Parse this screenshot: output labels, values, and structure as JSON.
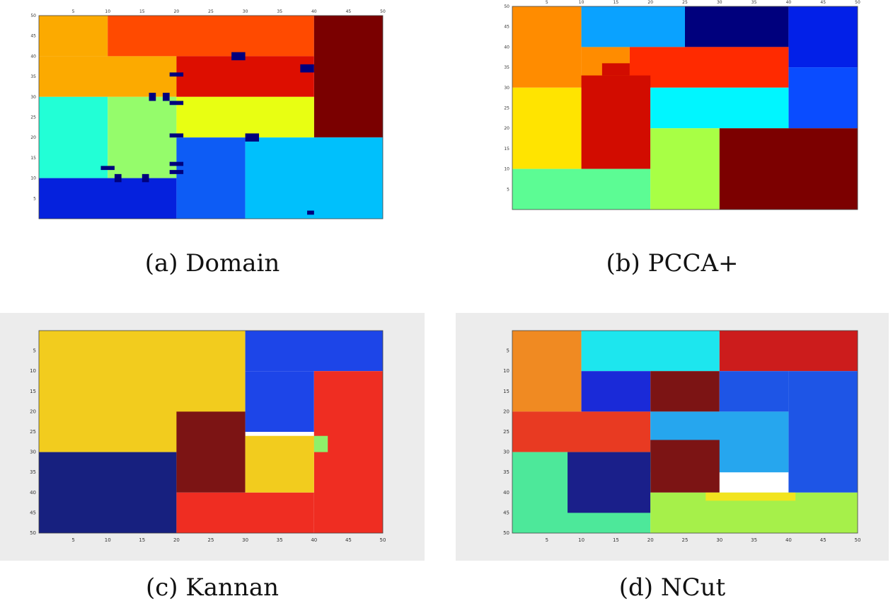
{
  "figure": {
    "panels": [
      {
        "id": "a",
        "caption": "(a) Domain",
        "chart_data": {
          "type": "heatmap",
          "title": "",
          "xlim": [
            0,
            50
          ],
          "ylim": [
            0,
            50
          ],
          "noisy_background": false,
          "x_ticks": [
            "5",
            "10",
            "15",
            "20",
            "25",
            "30",
            "35",
            "40",
            "45",
            "50"
          ],
          "y_ticks": [
            "5",
            "10",
            "15",
            "20",
            "25",
            "30",
            "35",
            "40",
            "45",
            "50"
          ],
          "regions": [
            {
              "x0": 0,
              "x1": 10,
              "y0": 40,
              "y1": 50,
              "color": "#fcaa00"
            },
            {
              "x0": 10,
              "x1": 40,
              "y0": 40,
              "y1": 50,
              "color": "#ff4a00"
            },
            {
              "x0": 40,
              "x1": 50,
              "y0": 20,
              "y1": 50,
              "color": "#7a0000"
            },
            {
              "x0": 0,
              "x1": 20,
              "y0": 30,
              "y1": 40,
              "color": "#fcaa00"
            },
            {
              "x0": 20,
              "x1": 40,
              "y0": 30,
              "y1": 40,
              "color": "#dd0e00"
            },
            {
              "x0": 0,
              "x1": 10,
              "y0": 10,
              "y1": 30,
              "color": "#22ffd6"
            },
            {
              "x0": 10,
              "x1": 20,
              "y0": 10,
              "y1": 30,
              "color": "#95fc6b"
            },
            {
              "x0": 20,
              "x1": 40,
              "y0": 20,
              "y1": 30,
              "color": "#e8ff12"
            },
            {
              "x0": 0,
              "x1": 20,
              "y0": 0,
              "y1": 10,
              "color": "#0521dd"
            },
            {
              "x0": 20,
              "x1": 30,
              "y0": 0,
              "y1": 20,
              "color": "#0d5cf5"
            },
            {
              "x0": 30,
              "x1": 50,
              "y0": 0,
              "y1": 20,
              "color": "#00c0fc"
            },
            {
              "x0": 28,
              "x1": 30,
              "y0": 39,
              "y1": 41,
              "color": "#00007d"
            },
            {
              "x0": 38,
              "x1": 40,
              "y0": 36,
              "y1": 38,
              "color": "#00007d"
            },
            {
              "x0": 19,
              "x1": 21,
              "y0": 35,
              "y1": 36,
              "color": "#00007d"
            },
            {
              "x0": 16,
              "x1": 17,
              "y0": 29,
              "y1": 31,
              "color": "#00007d"
            },
            {
              "x0": 18,
              "x1": 19,
              "y0": 29,
              "y1": 31,
              "color": "#00007d"
            },
            {
              "x0": 19,
              "x1": 21,
              "y0": 28,
              "y1": 29,
              "color": "#00007d"
            },
            {
              "x0": 19,
              "x1": 21,
              "y0": 20,
              "y1": 21,
              "color": "#00007d"
            },
            {
              "x0": 30,
              "x1": 32,
              "y0": 19,
              "y1": 21,
              "color": "#00007d"
            },
            {
              "x0": 9,
              "x1": 11,
              "y0": 12,
              "y1": 13,
              "color": "#00007d"
            },
            {
              "x0": 11,
              "x1": 12,
              "y0": 9,
              "y1": 11,
              "color": "#00007d"
            },
            {
              "x0": 15,
              "x1": 16,
              "y0": 9,
              "y1": 11,
              "color": "#00007d"
            },
            {
              "x0": 19,
              "x1": 21,
              "y0": 13,
              "y1": 14,
              "color": "#00007d"
            },
            {
              "x0": 19,
              "x1": 21,
              "y0": 11,
              "y1": 12,
              "color": "#00007d"
            },
            {
              "x0": 39,
              "x1": 40,
              "y0": 1,
              "y1": 2,
              "color": "#00007d"
            }
          ]
        }
      },
      {
        "id": "b",
        "caption": "(b) PCCA+",
        "chart_data": {
          "type": "heatmap",
          "title": "",
          "xlim": [
            0,
            50
          ],
          "ylim": [
            0,
            50
          ],
          "noisy_background": false,
          "x_ticks": [
            "5",
            "10",
            "15",
            "20",
            "25",
            "30",
            "35",
            "40",
            "45",
            "50"
          ],
          "y_ticks": [
            "5",
            "10",
            "15",
            "20",
            "25",
            "30",
            "35",
            "40",
            "45",
            "50"
          ],
          "regions": [
            {
              "x0": 0,
              "x1": 10,
              "y0": 30,
              "y1": 50,
              "color": "#ff8c00"
            },
            {
              "x0": 10,
              "x1": 17,
              "y0": 30,
              "y1": 40,
              "color": "#ff8c00"
            },
            {
              "x0": 10,
              "x1": 25,
              "y0": 40,
              "y1": 50,
              "color": "#0aa2ff"
            },
            {
              "x0": 25,
              "x1": 40,
              "y0": 40,
              "y1": 50,
              "color": "#00007d"
            },
            {
              "x0": 40,
              "x1": 50,
              "y0": 35,
              "y1": 50,
              "color": "#0220e8"
            },
            {
              "x0": 17,
              "x1": 40,
              "y0": 30,
              "y1": 40,
              "color": "#ff2a00"
            },
            {
              "x0": 40,
              "x1": 50,
              "y0": 20,
              "y1": 35,
              "color": "#0a4cff"
            },
            {
              "x0": 0,
              "x1": 10,
              "y0": 10,
              "y1": 30,
              "color": "#ffe400"
            },
            {
              "x0": 10,
              "x1": 20,
              "y0": 10,
              "y1": 33,
              "color": "#d20c00"
            },
            {
              "x0": 20,
              "x1": 40,
              "y0": 20,
              "y1": 30,
              "color": "#00f6ff"
            },
            {
              "x0": 0,
              "x1": 20,
              "y0": 0,
              "y1": 10,
              "color": "#5cfc94"
            },
            {
              "x0": 20,
              "x1": 30,
              "y0": 0,
              "y1": 20,
              "color": "#a8ff45"
            },
            {
              "x0": 30,
              "x1": 50,
              "y0": 0,
              "y1": 20,
              "color": "#7c0000"
            },
            {
              "x0": 13,
              "x1": 17,
              "y0": 33,
              "y1": 36,
              "color": "#d20c00"
            }
          ]
        }
      },
      {
        "id": "c",
        "caption": "(c) Kannan",
        "chart_data": {
          "type": "heatmap",
          "title": "",
          "xlim": [
            0,
            50
          ],
          "ylim": [
            0,
            50
          ],
          "y_reversed": true,
          "noisy_background": true,
          "x_ticks": [
            "5",
            "10",
            "15",
            "20",
            "25",
            "30",
            "35",
            "40",
            "45",
            "50"
          ],
          "y_ticks": [
            "5",
            "10",
            "15",
            "20",
            "25",
            "30",
            "35",
            "40",
            "45",
            "50"
          ],
          "regions": [
            {
              "x0": 0,
              "x1": 30,
              "y0": 0,
              "y1": 30,
              "color": "#f2cc1e"
            },
            {
              "x0": 30,
              "x1": 50,
              "y0": 0,
              "y1": 10,
              "color": "#1d45e8"
            },
            {
              "x0": 30,
              "x1": 40,
              "y0": 10,
              "y1": 25,
              "color": "#1d45e8"
            },
            {
              "x0": 40,
              "x1": 50,
              "y0": 10,
              "y1": 50,
              "color": "#ef2d22"
            },
            {
              "x0": 0,
              "x1": 20,
              "y0": 30,
              "y1": 50,
              "color": "#17207f"
            },
            {
              "x0": 20,
              "x1": 30,
              "y0": 20,
              "y1": 40,
              "color": "#7c1414"
            },
            {
              "x0": 30,
              "x1": 40,
              "y0": 26,
              "y1": 40,
              "color": "#f2cc1e"
            },
            {
              "x0": 20,
              "x1": 40,
              "y0": 40,
              "y1": 50,
              "color": "#ef2d22"
            },
            {
              "x0": 40,
              "x1": 42,
              "y0": 26,
              "y1": 30,
              "color": "#8ef06a"
            }
          ]
        }
      },
      {
        "id": "d",
        "caption": "(d) NCut",
        "chart_data": {
          "type": "heatmap",
          "title": "",
          "xlim": [
            0,
            50
          ],
          "ylim": [
            0,
            50
          ],
          "y_reversed": true,
          "noisy_background": true,
          "x_ticks": [
            "5",
            "10",
            "15",
            "20",
            "25",
            "30",
            "35",
            "40",
            "45",
            "50"
          ],
          "y_ticks": [
            "5",
            "10",
            "15",
            "20",
            "25",
            "30",
            "35",
            "40",
            "45",
            "50"
          ],
          "regions": [
            {
              "x0": 0,
              "x1": 10,
              "y0": 0,
              "y1": 20,
              "color": "#f08a22"
            },
            {
              "x0": 10,
              "x1": 30,
              "y0": 0,
              "y1": 10,
              "color": "#1de6ee"
            },
            {
              "x0": 30,
              "x1": 50,
              "y0": 0,
              "y1": 10,
              "color": "#cc1c1c"
            },
            {
              "x0": 10,
              "x1": 20,
              "y0": 10,
              "y1": 20,
              "color": "#1a2ad8"
            },
            {
              "x0": 20,
              "x1": 30,
              "y0": 10,
              "y1": 20,
              "color": "#7c1414"
            },
            {
              "x0": 40,
              "x1": 50,
              "y0": 10,
              "y1": 40,
              "color": "#1e55e6"
            },
            {
              "x0": 30,
              "x1": 40,
              "y0": 10,
              "y1": 20,
              "color": "#1e55e6"
            },
            {
              "x0": 0,
              "x1": 20,
              "y0": 20,
              "y1": 30,
              "color": "#e83a22"
            },
            {
              "x0": 20,
              "x1": 40,
              "y0": 20,
              "y1": 35,
              "color": "#26a6ee"
            },
            {
              "x0": 20,
              "x1": 30,
              "y0": 27,
              "y1": 40,
              "color": "#7c1414"
            },
            {
              "x0": 0,
              "x1": 20,
              "y0": 30,
              "y1": 50,
              "color": "#4de89a"
            },
            {
              "x0": 8,
              "x1": 20,
              "y0": 30,
              "y1": 45,
              "color": "#1a1f8a"
            },
            {
              "x0": 20,
              "x1": 50,
              "y0": 40,
              "y1": 50,
              "color": "#a6f04a"
            },
            {
              "x0": 28,
              "x1": 41,
              "y0": 40,
              "y1": 42,
              "color": "#f2e41e"
            }
          ]
        }
      }
    ]
  }
}
